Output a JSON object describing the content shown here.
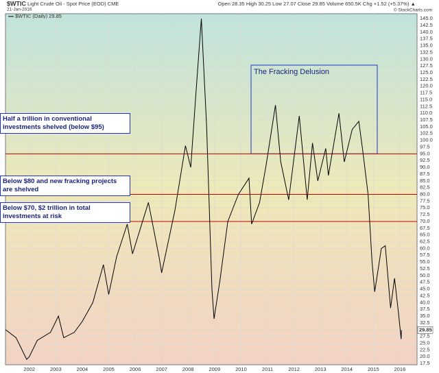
{
  "chart_data": {
    "type": "line",
    "title": "$WTIC",
    "subtitle": "Light Crude Oil - Spot Price (EOD) CME",
    "date": "21-Jan-2016",
    "quote": "Open 28.35  High 30.25  Low 27.07  Close 29.85  Volume 650.5K  Chg +1.52 (+5.37%) ▲",
    "credit": "© StockCharts.com",
    "legend_label": "$WTIC (Daily) 29.85",
    "box_annotation": "The Fracking Delusion",
    "grid": true,
    "xlim": [
      2001.1,
      2016.65
    ],
    "xticks": [
      2002,
      2003,
      2004,
      2005,
      2006,
      2007,
      2008,
      2009,
      2010,
      2011,
      2012,
      2013,
      2014,
      2015,
      2016
    ],
    "ylim": [
      17,
      146.8
    ],
    "yticks": [
      {
        "value": 17.5,
        "label": "17.5"
      },
      {
        "value": 20,
        "label": "20.0"
      },
      {
        "value": 22.5,
        "label": "22.5"
      },
      {
        "value": 25,
        "label": "25.0"
      },
      {
        "value": 27.5,
        "label": "27.5"
      },
      {
        "value": 30,
        "label": "30.0"
      },
      {
        "value": 32.5,
        "label": "32.5"
      },
      {
        "value": 35,
        "label": "35.0"
      },
      {
        "value": 37.5,
        "label": "37.5"
      },
      {
        "value": 40,
        "label": "40.0"
      },
      {
        "value": 42.5,
        "label": "42.5"
      },
      {
        "value": 45,
        "label": "45.0"
      },
      {
        "value": 47.5,
        "label": "47.5"
      },
      {
        "value": 50,
        "label": "50.0"
      },
      {
        "value": 52.5,
        "label": "52.5"
      },
      {
        "value": 55,
        "label": "55.0"
      },
      {
        "value": 57.5,
        "label": "57.5"
      },
      {
        "value": 60,
        "label": "60.0"
      },
      {
        "value": 62.5,
        "label": "62.5"
      },
      {
        "value": 65,
        "label": "65.0"
      },
      {
        "value": 67.5,
        "label": "67.5"
      },
      {
        "value": 70,
        "label": "70.0"
      },
      {
        "value": 72.5,
        "label": "72.5"
      },
      {
        "value": 75,
        "label": "75.0"
      },
      {
        "value": 77.5,
        "label": "77.5"
      },
      {
        "value": 80,
        "label": "80.0"
      },
      {
        "value": 82.5,
        "label": "82.5"
      },
      {
        "value": 85,
        "label": "85.0"
      },
      {
        "value": 87.5,
        "label": "87.5"
      },
      {
        "value": 90,
        "label": "90.0"
      },
      {
        "value": 92.5,
        "label": "92.5"
      },
      {
        "value": 95,
        "label": "95.0"
      },
      {
        "value": 97.5,
        "label": "97.5"
      },
      {
        "value": 100,
        "label": "100.0"
      },
      {
        "value": 102.5,
        "label": "102.5"
      },
      {
        "value": 105,
        "label": "105.0"
      },
      {
        "value": 107.5,
        "label": "107.5"
      },
      {
        "value": 110,
        "label": "110.0"
      },
      {
        "value": 112.5,
        "label": "112.5"
      },
      {
        "value": 115,
        "label": "115.0"
      },
      {
        "value": 117.5,
        "label": "117.5"
      },
      {
        "value": 120,
        "label": "120.0"
      },
      {
        "value": 122.5,
        "label": "122.5"
      },
      {
        "value": 125,
        "label": "125.0"
      },
      {
        "value": 127.5,
        "label": "127.5"
      },
      {
        "value": 130,
        "label": "130.0"
      },
      {
        "value": 132.5,
        "label": "132.5"
      },
      {
        "value": 135,
        "label": "135.0"
      },
      {
        "value": 137.5,
        "label": "137.5"
      },
      {
        "value": 140,
        "label": "140.0"
      },
      {
        "value": 142.5,
        "label": "142.5"
      },
      {
        "value": 145,
        "label": "145.0"
      }
    ],
    "x": [
      2001.1,
      2001.5,
      2001.9,
      2002.0,
      2002.3,
      2002.8,
      2003.1,
      2003.3,
      2003.7,
      2004.0,
      2004.4,
      2004.8,
      2005.0,
      2005.3,
      2005.7,
      2005.9,
      2006.5,
      2006.9,
      2007.0,
      2007.5,
      2007.9,
      2008.1,
      2008.3,
      2008.5,
      2008.7,
      2008.9,
      2008.98,
      2009.2,
      2009.5,
      2009.9,
      2010.3,
      2010.4,
      2010.7,
      2010.95,
      2011.3,
      2011.5,
      2011.8,
      2012.2,
      2012.5,
      2012.7,
      2012.9,
      2013.2,
      2013.3,
      2013.7,
      2013.9,
      2014.2,
      2014.45,
      2014.6,
      2014.8,
      2014.95,
      2015.05,
      2015.3,
      2015.45,
      2015.65,
      2015.8,
      2015.95,
      2016.05,
      2016.06
    ],
    "series": [
      {
        "name": "$WTIC",
        "color": "#000000",
        "values": [
          30,
          27,
          19,
          20,
          26,
          29,
          35,
          27,
          29,
          33,
          40,
          54,
          43,
          57,
          69,
          58,
          77,
          57,
          51,
          74,
          98,
          90,
          118,
          145,
          105,
          45,
          34,
          48,
          70,
          80,
          86,
          69,
          77,
          91,
          113,
          92,
          78,
          109,
          78,
          99,
          85,
          97,
          87,
          110,
          92,
          104,
          107,
          96,
          80,
          55,
          44,
          60,
          61,
          38,
          49,
          36,
          26.5,
          29.85
        ]
      }
    ],
    "reference_lines": [
      {
        "value": 95,
        "color": "#c00000",
        "label": "Half a trillion in conventional\ninvestments shelved (below $95)"
      },
      {
        "value": 80,
        "color": "#c00000",
        "label": "Below $80 and new fracking projects\nare shelved"
      },
      {
        "value": 70,
        "color": "#c00000",
        "label": "Below $70, $2 trillion in total\ninvestments at risk"
      }
    ]
  }
}
